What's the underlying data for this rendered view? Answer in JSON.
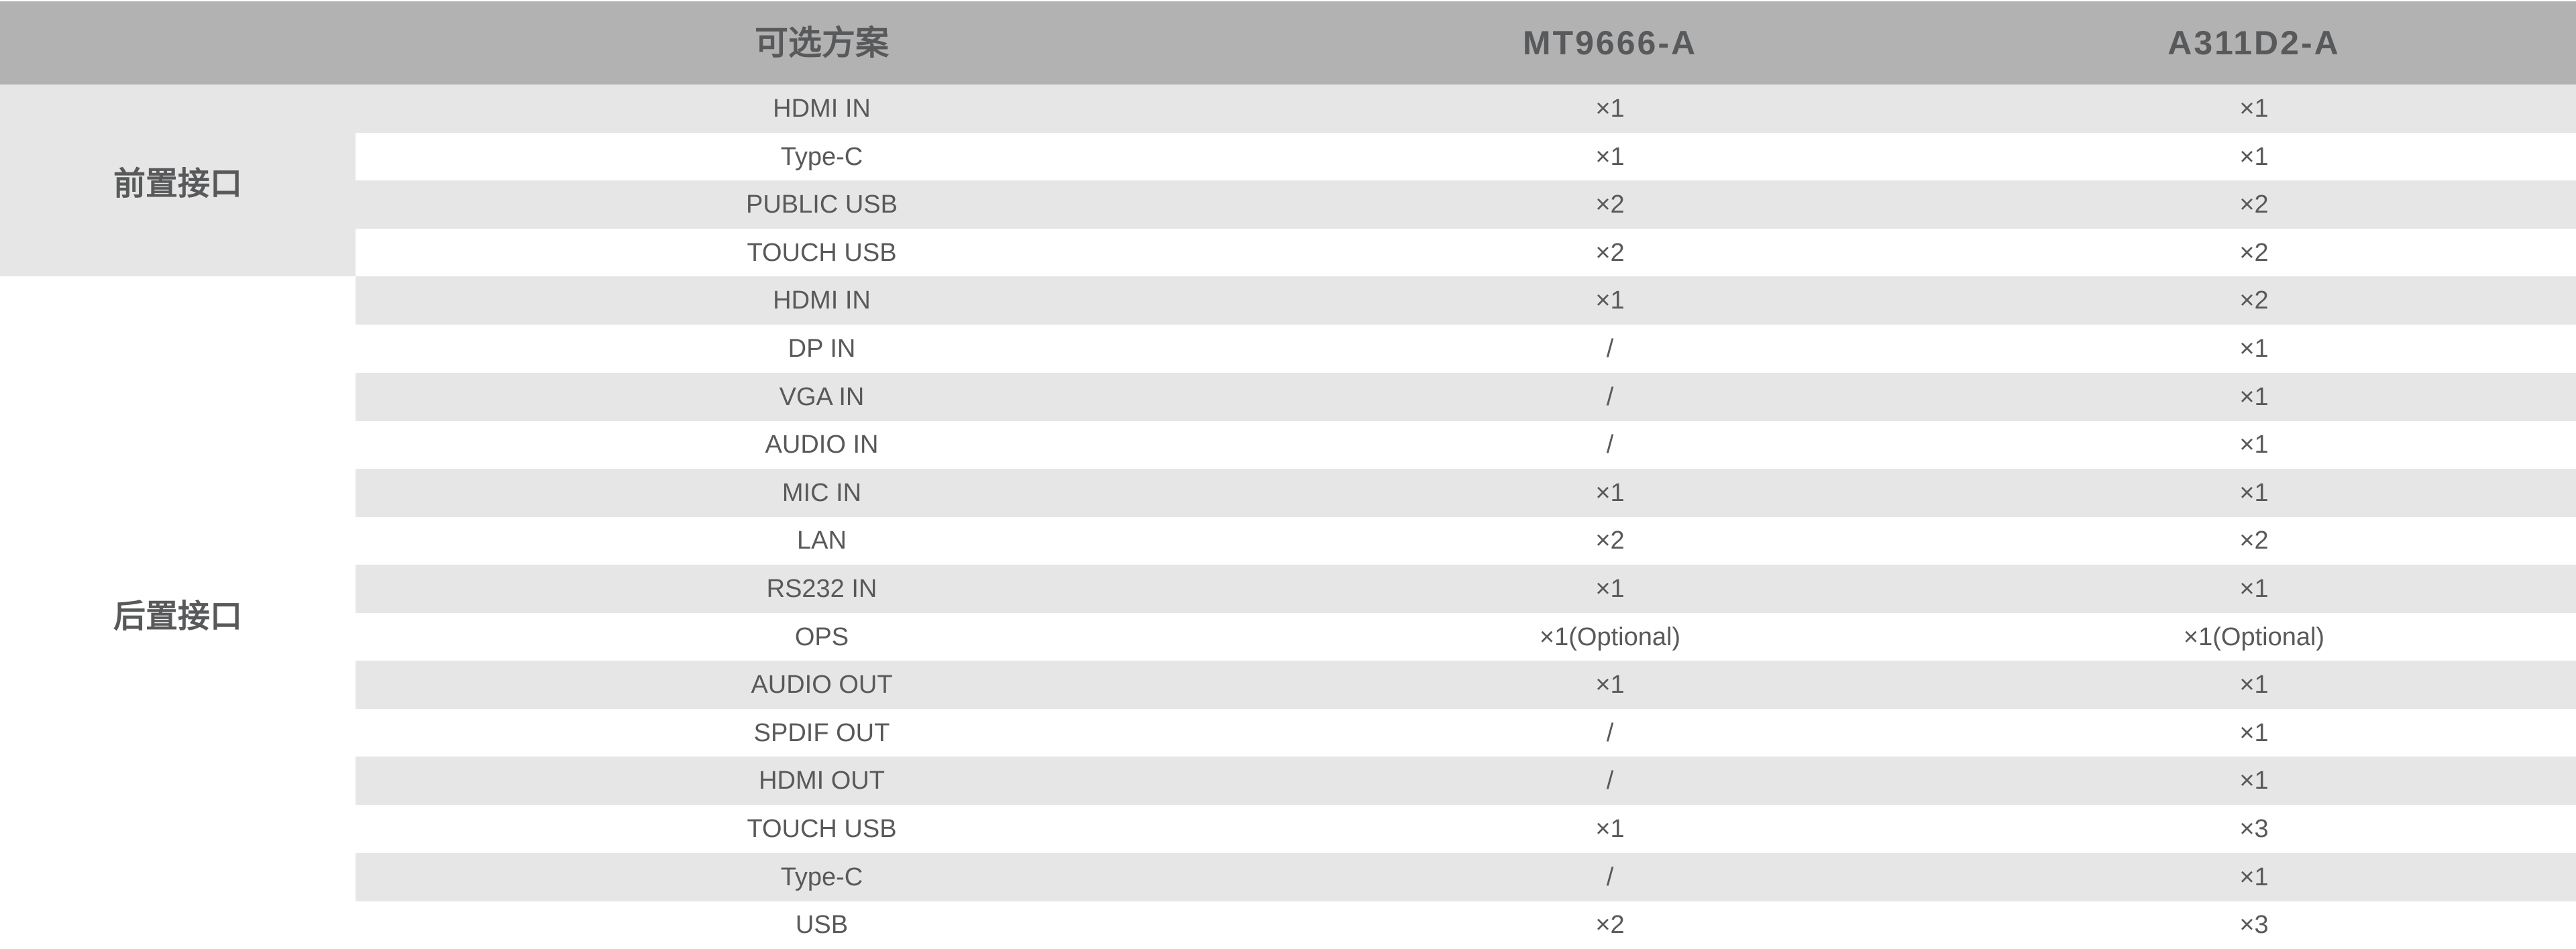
{
  "header": {
    "option": "可选方案",
    "model1": "MT9666-A",
    "model2": "A311D2-A"
  },
  "groups": [
    {
      "label": "前置接口",
      "rows": [
        {
          "port": "HDMI IN",
          "m1": "×1",
          "m2": "×1"
        },
        {
          "port": "Type-C",
          "m1": "×1",
          "m2": "×1"
        },
        {
          "port": "PUBLIC USB",
          "m1": "×2",
          "m2": "×2"
        },
        {
          "port": "TOUCH USB",
          "m1": "×2",
          "m2": "×2"
        }
      ]
    },
    {
      "label": "后置接口",
      "rows": [
        {
          "port": "HDMI IN",
          "m1": "×1",
          "m2": "×2"
        },
        {
          "port": "DP IN",
          "m1": "/",
          "m2": "×1"
        },
        {
          "port": "VGA IN",
          "m1": "/",
          "m2": "×1"
        },
        {
          "port": "AUDIO IN",
          "m1": "/",
          "m2": "×1"
        },
        {
          "port": "MIC IN",
          "m1": "×1",
          "m2": "×1"
        },
        {
          "port": "LAN",
          "m1": "×2",
          "m2": "×2"
        },
        {
          "port": "RS232 IN",
          "m1": "×1",
          "m2": "×1"
        },
        {
          "port": "OPS",
          "m1": "×1(Optional)",
          "m2": "×1(Optional)"
        },
        {
          "port": "AUDIO OUT",
          "m1": "×1",
          "m2": "×1"
        },
        {
          "port": "SPDIF OUT",
          "m1": "/",
          "m2": "×1"
        },
        {
          "port": "HDMI OUT",
          "m1": "/",
          "m2": "×1"
        },
        {
          "port": "TOUCH USB",
          "m1": "×1",
          "m2": "×3"
        },
        {
          "port": "Type-C",
          "m1": "/",
          "m2": "×1"
        },
        {
          "port": "USB",
          "m1": "×2",
          "m2": "×3"
        }
      ]
    }
  ],
  "colors": {
    "header_bg": "#b2b2b2",
    "stripe": "#e6e6e6",
    "text": "#58595b"
  }
}
